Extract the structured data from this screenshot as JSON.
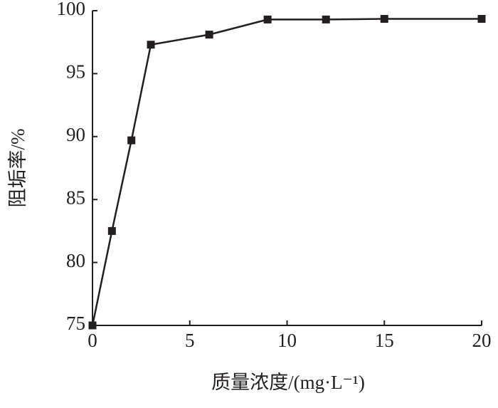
{
  "chart_data": {
    "type": "line",
    "x_label": "质量浓度/(mg·L⁻¹)",
    "y_label": "阻垢率/%",
    "x": [
      0,
      1,
      2,
      3,
      6,
      9,
      12,
      15,
      20
    ],
    "values": [
      75,
      82.5,
      89.7,
      97.3,
      98.1,
      99.3,
      99.3,
      99.35,
      99.35
    ],
    "color": "#231f20",
    "xlim": [
      0,
      20
    ],
    "xticks": [
      0,
      5,
      10,
      15,
      20
    ],
    "ylim": [
      75,
      100
    ],
    "yticks": [
      75,
      80,
      85,
      90,
      95,
      100
    ]
  }
}
